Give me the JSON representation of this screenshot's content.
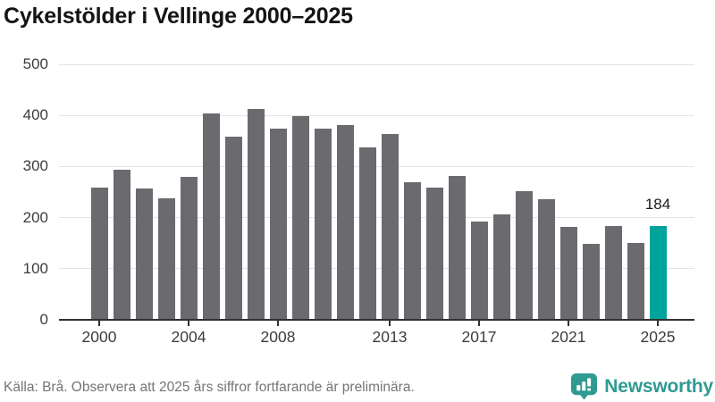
{
  "title": "Cykelstölder i Vellinge 2000–2025",
  "chart_data": {
    "type": "bar",
    "title": "Cykelstölder i Vellinge 2000–2025",
    "categories": [
      2000,
      2001,
      2002,
      2003,
      2004,
      2005,
      2006,
      2007,
      2008,
      2009,
      2010,
      2011,
      2012,
      2013,
      2014,
      2015,
      2016,
      2017,
      2018,
      2019,
      2020,
      2021,
      2022,
      2023,
      2024,
      2025
    ],
    "values": [
      258,
      294,
      257,
      238,
      280,
      403,
      359,
      413,
      374,
      399,
      375,
      382,
      337,
      364,
      269,
      258,
      281,
      192,
      206,
      251,
      236,
      181,
      148,
      183,
      150,
      184
    ],
    "ylim": [
      0,
      500
    ],
    "yticks": [
      0,
      100,
      200,
      300,
      400,
      500
    ],
    "xtick_years": [
      2000,
      2004,
      2008,
      2013,
      2017,
      2021,
      2025
    ],
    "xtick_labels": [
      "2000",
      "2004",
      "2008",
      "2013",
      "2017",
      "2021",
      "2025"
    ],
    "grid": true,
    "legend_position": "none",
    "bar_color": "#6a6a6f",
    "highlight": {
      "year": 2025,
      "value": 184,
      "label": "184",
      "color": "#00a49b"
    }
  },
  "footer": {
    "source_note": "Källa: Brå. Observera att 2025 års siffror fortfarande är preliminära.",
    "brand": "Newsworthy"
  },
  "colors": {
    "bar_gray": "#6a6a6f",
    "highlight_teal": "#00a49b",
    "logo_teal": "#2f9a92",
    "gridline": "#e4e4e4",
    "axis": "#303030",
    "title_text": "#141414",
    "tick_text": "#3d3d3d",
    "footer_text": "#757575"
  }
}
